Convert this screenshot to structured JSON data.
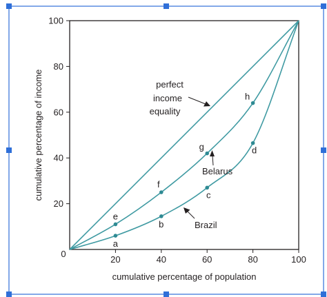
{
  "selection": {
    "border_color": "#2f6fd8",
    "handle_color": "#2f6fd8"
  },
  "chart_data": {
    "type": "line",
    "title": "",
    "xlabel": "cumulative percentage of population",
    "ylabel": "cumulative percentage of income",
    "xlim": [
      0,
      100
    ],
    "ylim": [
      0,
      100
    ],
    "x_ticks": [
      "20",
      "40",
      "60",
      "80",
      "100"
    ],
    "y_ticks": [
      "20",
      "40",
      "60",
      "80",
      "100"
    ],
    "origin_label": "0",
    "grid": false,
    "line_color": "#3f9aa2",
    "point_color": "#2e8a93",
    "series": [
      {
        "x": [
          0,
          100
        ],
        "y": [
          0,
          100
        ]
      },
      {
        "x": [
          0,
          20,
          40,
          60,
          80,
          100
        ],
        "y": [
          0,
          11,
          25,
          42,
          64,
          100
        ]
      },
      {
        "x": [
          0,
          20,
          40,
          60,
          80,
          100
        ],
        "y": [
          0,
          6,
          14.5,
          27,
          46.5,
          100
        ]
      }
    ],
    "points": [
      {
        "label": "a",
        "x": 20,
        "y": 6
      },
      {
        "label": "b",
        "x": 40,
        "y": 14.5
      },
      {
        "label": "c",
        "x": 60,
        "y": 27
      },
      {
        "label": "d",
        "x": 80,
        "y": 46.5
      },
      {
        "label": "e",
        "x": 20,
        "y": 11
      },
      {
        "label": "f",
        "x": 40,
        "y": 25
      },
      {
        "label": "g",
        "x": 60,
        "y": 42
      },
      {
        "label": "h",
        "x": 80,
        "y": 64
      }
    ],
    "annotations": {
      "equality": [
        "perfect",
        "income",
        "equality"
      ],
      "belarus": "Belarus",
      "brazil": "Brazil"
    }
  }
}
